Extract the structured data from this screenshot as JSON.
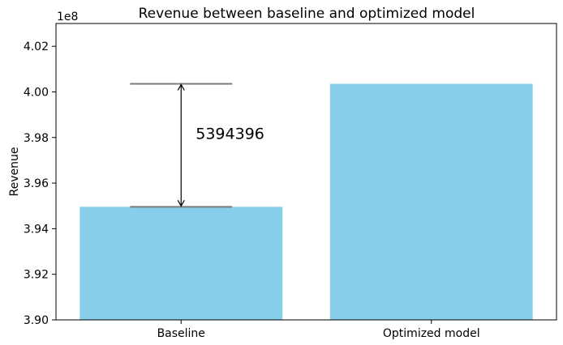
{
  "chart_data": {
    "type": "bar",
    "title": "Revenue between baseline and optimized model",
    "xlabel": "",
    "ylabel": "Revenue",
    "y_offset_label": "1e8",
    "categories": [
      "Baseline",
      "Optimized model"
    ],
    "values": [
      394960000,
      400354396
    ],
    "ylim": [
      390000000,
      403000000
    ],
    "yticks": [
      3.9,
      3.92,
      3.94,
      3.96,
      3.98,
      4.0,
      4.02
    ],
    "ytick_labels": [
      "3.90",
      "3.92",
      "3.94",
      "3.96",
      "3.98",
      "4.00",
      "4.02"
    ],
    "bar_color": "#87CEEB",
    "grid": false,
    "annotation": {
      "text": "5394396",
      "from_value": 394960000,
      "to_value": 400354396
    }
  }
}
